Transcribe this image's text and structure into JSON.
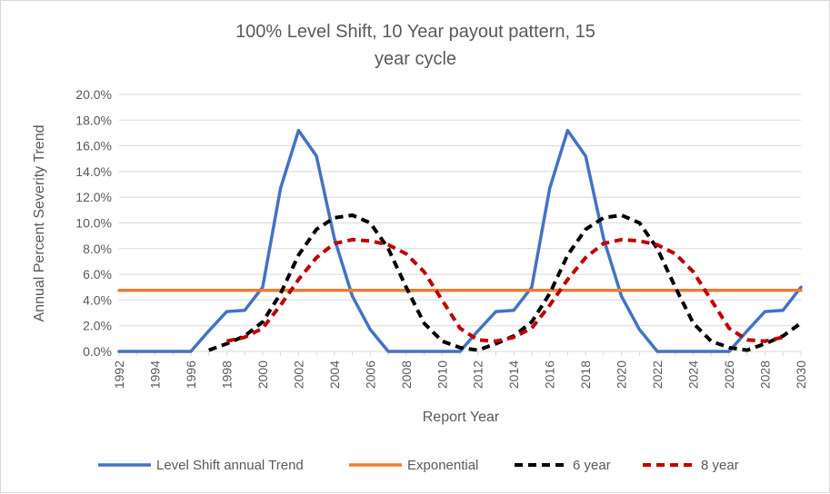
{
  "chart_data": {
    "type": "line",
    "title": "100% Level Shift, 10 Year payout pattern, 15 year cycle",
    "title_lines": [
      "100% Level Shift, 10 Year payout pattern, 15",
      "year cycle"
    ],
    "xlabel": "Report Year",
    "ylabel": "Annual Percent Severity Trend",
    "xlim": [
      1992,
      2030
    ],
    "ylim": [
      0,
      20
    ],
    "x_ticks": [
      1992,
      1994,
      1996,
      1998,
      2000,
      2002,
      2004,
      2006,
      2008,
      2010,
      2012,
      2014,
      2016,
      2018,
      2020,
      2022,
      2024,
      2026,
      2028,
      2030
    ],
    "y_ticks": [
      0,
      2,
      4,
      6,
      8,
      10,
      12,
      14,
      16,
      18,
      20
    ],
    "y_tick_labels": [
      "0.0%",
      "2.0%",
      "4.0%",
      "6.0%",
      "8.0%",
      "10.0%",
      "12.0%",
      "14.0%",
      "16.0%",
      "18.0%",
      "20.0%"
    ],
    "grid": true,
    "legend_position": "bottom",
    "series": [
      {
        "name": "Level Shift annual Trend",
        "color": "#4472c4",
        "dash": "solid",
        "x": [
          1992,
          1993,
          1994,
          1995,
          1996,
          1997,
          1998,
          1999,
          2000,
          2001,
          2002,
          2003,
          2004,
          2005,
          2006,
          2007,
          2008,
          2009,
          2010,
          2011,
          2012,
          2013,
          2014,
          2015,
          2016,
          2017,
          2018,
          2019,
          2020,
          2021,
          2022,
          2023,
          2024,
          2025,
          2026,
          2027,
          2028,
          2029,
          2030
        ],
        "values": [
          0,
          0,
          0,
          0,
          0,
          1.6,
          3.1,
          3.2,
          5.0,
          12.7,
          17.2,
          15.2,
          8.8,
          4.3,
          1.7,
          0,
          0,
          0,
          0,
          0,
          1.6,
          3.1,
          3.2,
          5.0,
          12.7,
          17.2,
          15.2,
          8.8,
          4.3,
          1.7,
          0,
          0,
          0,
          0,
          0,
          1.6,
          3.1,
          3.2,
          5.0
        ]
      },
      {
        "name": "Exponential",
        "color": "#ed7d31",
        "dash": "solid",
        "x": [
          1992,
          2030
        ],
        "values": [
          4.75,
          4.75
        ]
      },
      {
        "name": "6 year",
        "color": "#000000",
        "dash": "dashed",
        "x": [
          1997,
          1998,
          1999,
          2000,
          2001,
          2002,
          2003,
          2004,
          2005,
          2006,
          2007,
          2008,
          2009,
          2010,
          2011,
          2012,
          2013,
          2014,
          2015,
          2016,
          2017,
          2018,
          2019,
          2020,
          2021,
          2022,
          2023,
          2024,
          2025,
          2026,
          2027,
          2028,
          2029,
          2030
        ],
        "values": [
          0.1,
          0.6,
          1.2,
          2.3,
          4.5,
          7.5,
          9.5,
          10.4,
          10.6,
          10.0,
          8.0,
          5.0,
          2.2,
          0.8,
          0.3,
          0.1,
          0.6,
          1.2,
          2.3,
          4.5,
          7.5,
          9.5,
          10.4,
          10.6,
          10.0,
          8.0,
          5.0,
          2.2,
          0.8,
          0.3,
          0.1,
          0.6,
          1.2,
          2.2
        ]
      },
      {
        "name": "8 year",
        "color": "#c00000",
        "dash": "dashed",
        "x": [
          1998,
          1999,
          2000,
          2001,
          2002,
          2003,
          2004,
          2005,
          2006,
          2007,
          2008,
          2009,
          2010,
          2011,
          2012,
          2013,
          2014,
          2015,
          2016,
          2017,
          2018,
          2019,
          2020,
          2021,
          2022,
          2023,
          2024,
          2025,
          2026,
          2027,
          2028,
          2029
        ],
        "values": [
          0.8,
          1.1,
          1.8,
          3.6,
          5.6,
          7.3,
          8.4,
          8.7,
          8.6,
          8.3,
          7.6,
          6.2,
          4.0,
          1.8,
          0.9,
          0.8,
          1.1,
          1.8,
          3.6,
          5.6,
          7.3,
          8.4,
          8.7,
          8.6,
          8.3,
          7.6,
          6.2,
          4.0,
          1.8,
          0.9,
          0.8,
          1.1
        ]
      }
    ]
  }
}
